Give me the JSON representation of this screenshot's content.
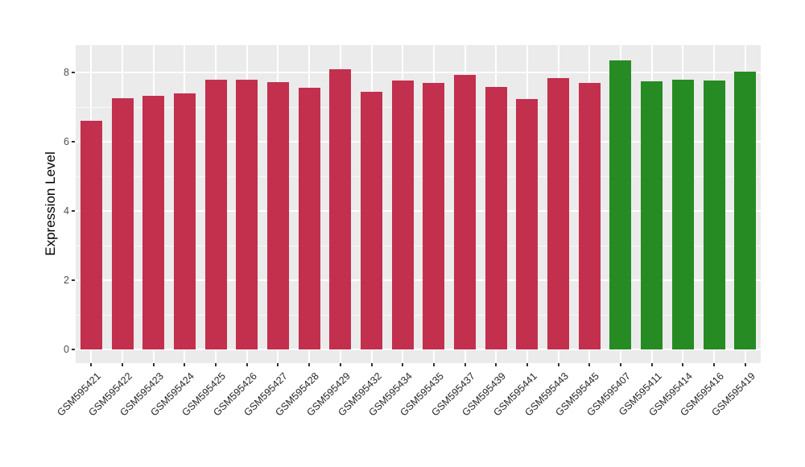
{
  "chart_data": {
    "type": "bar",
    "title": "",
    "xlabel": "",
    "ylabel": "Expression Level",
    "ylim": [
      0,
      8.79
    ],
    "yticks_major": [
      0,
      2,
      4,
      6,
      8
    ],
    "yticks_minor": [
      1,
      3,
      5,
      7
    ],
    "ytick_labels": [
      "0",
      "2",
      "4",
      "6",
      "8"
    ],
    "grid": "white major and minor horizontal gridlines plus vertical gridline at each category, on gray panel",
    "legend_position": "none",
    "categories": [
      "GSM595421",
      "GSM595422",
      "GSM595423",
      "GSM595424",
      "GSM595425",
      "GSM595426",
      "GSM595427",
      "GSM595428",
      "GSM595429",
      "GSM595432",
      "GSM595434",
      "GSM595435",
      "GSM595437",
      "GSM595439",
      "GSM595441",
      "GSM595443",
      "GSM595445",
      "GSM595407",
      "GSM595411",
      "GSM595414",
      "GSM595416",
      "GSM595419"
    ],
    "values": [
      6.6,
      7.25,
      7.33,
      7.4,
      7.79,
      7.79,
      7.72,
      7.57,
      8.1,
      7.45,
      7.77,
      7.7,
      7.94,
      7.58,
      7.24,
      7.83,
      7.7,
      8.35,
      7.74,
      7.79,
      7.76,
      8.02
    ],
    "bar_colors": [
      "#C2304D",
      "#C2304D",
      "#C2304D",
      "#C2304D",
      "#C2304D",
      "#C2304D",
      "#C2304D",
      "#C2304D",
      "#C2304D",
      "#C2304D",
      "#C2304D",
      "#C2304D",
      "#C2304D",
      "#C2304D",
      "#C2304D",
      "#C2304D",
      "#C2304D",
      "#268B22",
      "#268B22",
      "#268B22",
      "#268B22",
      "#268B22"
    ]
  },
  "style": {
    "panel_background": "#EBEBEB",
    "gridline_color": "#FFFFFF",
    "red_bar_color": "#C2304D",
    "green_bar_color": "#268B22",
    "tick_mark_color": "#333333",
    "ytick_text_color": "#4D4D4D",
    "xtick_text_color": "#262626"
  }
}
